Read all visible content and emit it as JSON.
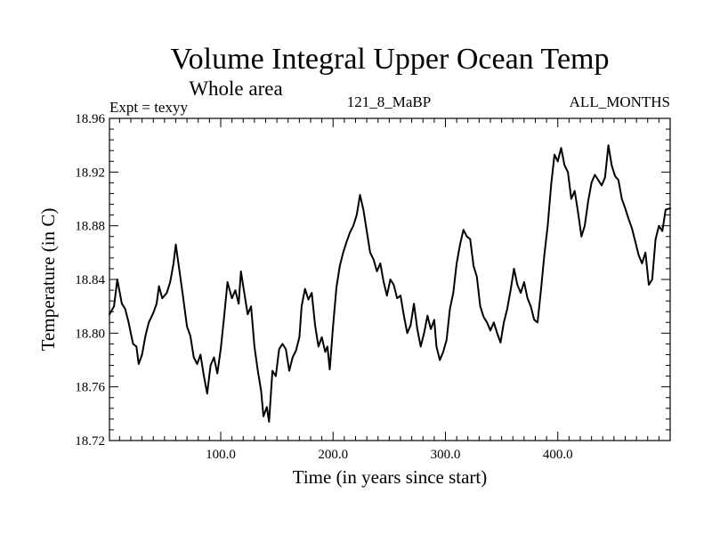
{
  "chart_data": {
    "type": "line",
    "title": "Volume Integral Upper Ocean Temp",
    "subtitle": "Whole area",
    "left_note": "Expt = texyy",
    "center_note": "121_8_MaBP",
    "right_note": "ALL_MONTHS",
    "xlabel": "Time (in years since start)",
    "ylabel": "Temperature (in C)",
    "xlim": [
      1,
      500
    ],
    "ylim": [
      18.72,
      18.96
    ],
    "xticks": [
      100,
      200,
      300,
      400
    ],
    "xtick_labels": [
      "100.0",
      "200.0",
      "300.0",
      "400.0"
    ],
    "yticks": [
      18.72,
      18.76,
      18.8,
      18.84,
      18.88,
      18.92,
      18.96
    ],
    "ytick_labels": [
      "18.72",
      "18.76",
      "18.80",
      "18.84",
      "18.88",
      "18.92",
      "18.96"
    ],
    "grid": false,
    "series": [
      {
        "color": "#000000",
        "points": [
          [
            1,
            18.814
          ],
          [
            5,
            18.82
          ],
          [
            8,
            18.84
          ],
          [
            12,
            18.822
          ],
          [
            15,
            18.818
          ],
          [
            18,
            18.808
          ],
          [
            22,
            18.792
          ],
          [
            25,
            18.79
          ],
          [
            27,
            18.777
          ],
          [
            30,
            18.784
          ],
          [
            33,
            18.798
          ],
          [
            36,
            18.808
          ],
          [
            40,
            18.815
          ],
          [
            43,
            18.822
          ],
          [
            45,
            18.835
          ],
          [
            48,
            18.826
          ],
          [
            52,
            18.83
          ],
          [
            55,
            18.838
          ],
          [
            58,
            18.852
          ],
          [
            60,
            18.866
          ],
          [
            63,
            18.848
          ],
          [
            66,
            18.83
          ],
          [
            70,
            18.805
          ],
          [
            73,
            18.798
          ],
          [
            76,
            18.782
          ],
          [
            79,
            18.777
          ],
          [
            82,
            18.784
          ],
          [
            85,
            18.768
          ],
          [
            88,
            18.755
          ],
          [
            91,
            18.776
          ],
          [
            94,
            18.782
          ],
          [
            97,
            18.77
          ],
          [
            100,
            18.788
          ],
          [
            103,
            18.812
          ],
          [
            106,
            18.838
          ],
          [
            110,
            18.826
          ],
          [
            113,
            18.832
          ],
          [
            116,
            18.822
          ],
          [
            118,
            18.846
          ],
          [
            121,
            18.83
          ],
          [
            124,
            18.814
          ],
          [
            127,
            18.82
          ],
          [
            130,
            18.79
          ],
          [
            133,
            18.772
          ],
          [
            136,
            18.757
          ],
          [
            138,
            18.738
          ],
          [
            141,
            18.745
          ],
          [
            143,
            18.734
          ],
          [
            146,
            18.772
          ],
          [
            149,
            18.768
          ],
          [
            152,
            18.788
          ],
          [
            155,
            18.792
          ],
          [
            158,
            18.788
          ],
          [
            161,
            18.772
          ],
          [
            164,
            18.782
          ],
          [
            167,
            18.787
          ],
          [
            170,
            18.797
          ],
          [
            172,
            18.82
          ],
          [
            175,
            18.833
          ],
          [
            178,
            18.825
          ],
          [
            181,
            18.83
          ],
          [
            184,
            18.806
          ],
          [
            187,
            18.79
          ],
          [
            190,
            18.797
          ],
          [
            193,
            18.786
          ],
          [
            195,
            18.79
          ],
          [
            197,
            18.773
          ],
          [
            200,
            18.805
          ],
          [
            203,
            18.834
          ],
          [
            206,
            18.85
          ],
          [
            209,
            18.86
          ],
          [
            212,
            18.868
          ],
          [
            215,
            18.875
          ],
          [
            218,
            18.88
          ],
          [
            221,
            18.888
          ],
          [
            224,
            18.903
          ],
          [
            227,
            18.892
          ],
          [
            230,
            18.876
          ],
          [
            233,
            18.86
          ],
          [
            236,
            18.855
          ],
          [
            239,
            18.846
          ],
          [
            242,
            18.852
          ],
          [
            245,
            18.838
          ],
          [
            248,
            18.828
          ],
          [
            251,
            18.84
          ],
          [
            254,
            18.836
          ],
          [
            257,
            18.826
          ],
          [
            260,
            18.828
          ],
          [
            263,
            18.813
          ],
          [
            266,
            18.8
          ],
          [
            269,
            18.806
          ],
          [
            272,
            18.822
          ],
          [
            275,
            18.803
          ],
          [
            278,
            18.79
          ],
          [
            281,
            18.8
          ],
          [
            284,
            18.813
          ],
          [
            287,
            18.803
          ],
          [
            290,
            18.81
          ],
          [
            292,
            18.79
          ],
          [
            295,
            18.78
          ],
          [
            298,
            18.786
          ],
          [
            301,
            18.795
          ],
          [
            304,
            18.818
          ],
          [
            307,
            18.83
          ],
          [
            310,
            18.852
          ],
          [
            313,
            18.866
          ],
          [
            316,
            18.877
          ],
          [
            319,
            18.872
          ],
          [
            322,
            18.87
          ],
          [
            325,
            18.85
          ],
          [
            328,
            18.842
          ],
          [
            331,
            18.82
          ],
          [
            334,
            18.812
          ],
          [
            337,
            18.808
          ],
          [
            340,
            18.802
          ],
          [
            343,
            18.808
          ],
          [
            346,
            18.8
          ],
          [
            349,
            18.793
          ],
          [
            352,
            18.808
          ],
          [
            355,
            18.818
          ],
          [
            358,
            18.832
          ],
          [
            361,
            18.848
          ],
          [
            364,
            18.836
          ],
          [
            367,
            18.83
          ],
          [
            370,
            18.838
          ],
          [
            373,
            18.826
          ],
          [
            376,
            18.82
          ],
          [
            379,
            18.81
          ],
          [
            382,
            18.808
          ],
          [
            385,
            18.832
          ],
          [
            388,
            18.858
          ],
          [
            391,
            18.88
          ],
          [
            394,
            18.91
          ],
          [
            397,
            18.933
          ],
          [
            400,
            18.928
          ],
          [
            403,
            18.938
          ],
          [
            406,
            18.925
          ],
          [
            409,
            18.92
          ],
          [
            412,
            18.9
          ],
          [
            415,
            18.906
          ],
          [
            418,
            18.89
          ],
          [
            421,
            18.872
          ],
          [
            424,
            18.88
          ],
          [
            427,
            18.898
          ],
          [
            430,
            18.912
          ],
          [
            433,
            18.918
          ],
          [
            436,
            18.914
          ],
          [
            439,
            18.91
          ],
          [
            442,
            18.916
          ],
          [
            445,
            18.94
          ],
          [
            448,
            18.925
          ],
          [
            451,
            18.917
          ],
          [
            454,
            18.914
          ],
          [
            457,
            18.9
          ],
          [
            460,
            18.893
          ],
          [
            463,
            18.885
          ],
          [
            466,
            18.878
          ],
          [
            469,
            18.868
          ],
          [
            472,
            18.858
          ],
          [
            475,
            18.852
          ],
          [
            478,
            18.86
          ],
          [
            481,
            18.836
          ],
          [
            484,
            18.84
          ],
          [
            487,
            18.87
          ],
          [
            490,
            18.88
          ],
          [
            493,
            18.876
          ],
          [
            496,
            18.892
          ],
          [
            500,
            18.893
          ]
        ]
      }
    ]
  }
}
